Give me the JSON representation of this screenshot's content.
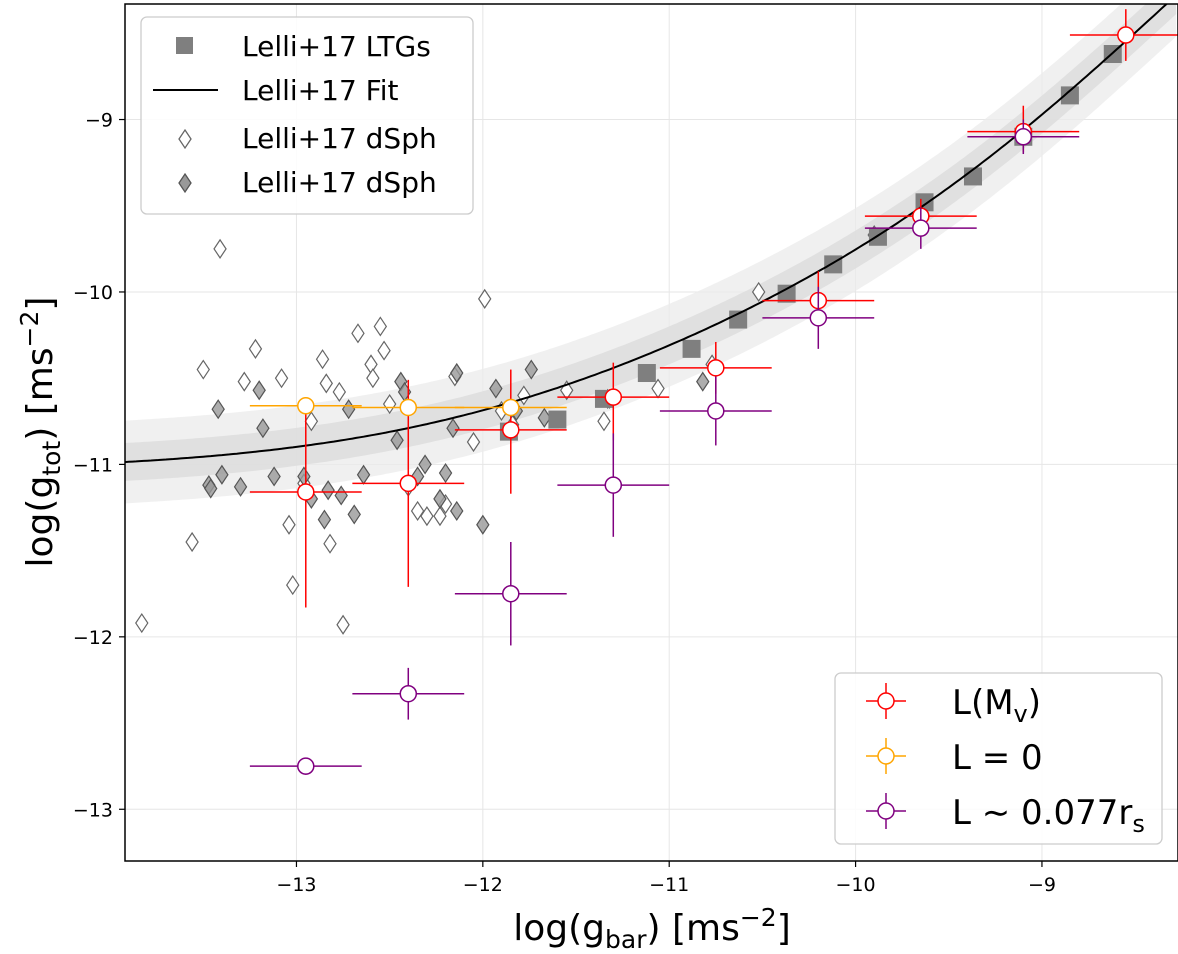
{
  "chart_data": {
    "type": "scatter",
    "xlabel": {
      "main": "log(g",
      "sub": "bar",
      "units": ") [ms",
      "sup": "−2",
      "close": "]"
    },
    "ylabel": {
      "main": "log(g",
      "sub": "tot",
      "units": ") [ms",
      "sup": "−2",
      "close": "]"
    },
    "xlim": [
      -13.92,
      -8.27
    ],
    "ylim": [
      -13.3,
      -8.33
    ],
    "x_ticks": [
      -13,
      -12,
      -11,
      -10,
      -9
    ],
    "y_ticks": [
      -13,
      -12,
      -11,
      -10,
      -9
    ],
    "x_tick_labels": [
      "−13",
      "−12",
      "−11",
      "−10",
      "−9"
    ],
    "y_tick_labels": [
      "−13",
      "−12",
      "−11",
      "−10",
      "−9"
    ],
    "grid": true,
    "legend_top_left": {
      "placement": "top-left",
      "entries": [
        {
          "label": "Lelli+17 LTGs",
          "marker": "square",
          "color": "#7f7f7f"
        },
        {
          "label": "Lelli+17 Fit",
          "marker": "line",
          "color": "#000000"
        },
        {
          "label": "Lelli+17 dSph",
          "marker": "diamond-open",
          "color": "#666666"
        },
        {
          "label": "Lelli+17 dSph",
          "marker": "diamond-filled",
          "color": "#888888"
        }
      ]
    },
    "legend_bottom_right": {
      "placement": "bottom-right",
      "entries": [
        {
          "main": "L(M",
          "sub": "v",
          "tail": ")",
          "color": "#ff0000"
        },
        {
          "main": "L = 0",
          "sub": "",
          "tail": "",
          "color": "#ffa500"
        },
        {
          "main": "L ∼ 0.077r",
          "sub": "s",
          "tail": "",
          "color": "#800080"
        }
      ]
    },
    "fit_curve": {
      "name": "Lelli+17 Fit",
      "color": "#000000",
      "g_dagger": -9.92,
      "a0": -11.04,
      "band_inner": 0.11,
      "band_outer": 0.24
    },
    "ltgs": {
      "name": "Lelli+17 LTGs",
      "color": "#7f7f7f",
      "points": [
        [
          -8.62,
          -8.62
        ],
        [
          -8.85,
          -8.86
        ],
        [
          -9.1,
          -9.1
        ],
        [
          -9.37,
          -9.33
        ],
        [
          -9.63,
          -9.48
        ],
        [
          -9.88,
          -9.68
        ],
        [
          -10.12,
          -9.84
        ],
        [
          -10.37,
          -10.01
        ],
        [
          -10.63,
          -10.16
        ],
        [
          -10.88,
          -10.33
        ],
        [
          -11.12,
          -10.47
        ],
        [
          -11.35,
          -10.62
        ],
        [
          -11.6,
          -10.74
        ],
        [
          -11.86,
          -10.81
        ]
      ]
    },
    "dsph_open": {
      "name": "Lelli+17 dSph",
      "color": "#666666",
      "points": [
        [
          -13.83,
          -11.92
        ],
        [
          -13.56,
          -11.45
        ],
        [
          -13.5,
          -10.45
        ],
        [
          -13.41,
          -9.75
        ],
        [
          -13.28,
          -10.52
        ],
        [
          -13.22,
          -10.33
        ],
        [
          -13.08,
          -10.5
        ],
        [
          -13.04,
          -11.35
        ],
        [
          -13.02,
          -11.7
        ],
        [
          -12.96,
          -11.11
        ],
        [
          -12.92,
          -10.75
        ],
        [
          -12.86,
          -10.39
        ],
        [
          -12.84,
          -10.53
        ],
        [
          -12.82,
          -11.46
        ],
        [
          -12.77,
          -10.58
        ],
        [
          -12.75,
          -11.93
        ],
        [
          -12.67,
          -10.24
        ],
        [
          -12.6,
          -10.42
        ],
        [
          -12.59,
          -10.5
        ],
        [
          -12.55,
          -10.2
        ],
        [
          -12.53,
          -10.34
        ],
        [
          -12.5,
          -10.65
        ],
        [
          -12.4,
          -11.13
        ],
        [
          -12.35,
          -11.27
        ],
        [
          -12.3,
          -11.3
        ],
        [
          -12.23,
          -11.3
        ],
        [
          -12.2,
          -11.23
        ],
        [
          -12.15,
          -10.49
        ],
        [
          -12.05,
          -10.87
        ],
        [
          -11.99,
          -10.04
        ],
        [
          -11.9,
          -10.69
        ],
        [
          -11.84,
          -10.77
        ],
        [
          -11.78,
          -10.6
        ],
        [
          -11.55,
          -10.57
        ],
        [
          -11.35,
          -10.75
        ],
        [
          -11.32,
          -10.62
        ],
        [
          -11.06,
          -10.56
        ],
        [
          -10.77,
          -10.42
        ],
        [
          -10.52,
          -10.0
        ],
        [
          -9.9,
          -9.67
        ]
      ]
    },
    "dsph_filled": {
      "name": "Lelli+17 dSph",
      "color": "#888888",
      "points": [
        [
          -13.47,
          -11.12
        ],
        [
          -13.46,
          -11.14
        ],
        [
          -13.42,
          -10.68
        ],
        [
          -13.4,
          -11.06
        ],
        [
          -13.3,
          -11.13
        ],
        [
          -13.2,
          -10.57
        ],
        [
          -13.18,
          -10.79
        ],
        [
          -13.12,
          -11.07
        ],
        [
          -12.96,
          -11.07
        ],
        [
          -12.92,
          -11.2
        ],
        [
          -12.85,
          -11.32
        ],
        [
          -12.83,
          -11.15
        ],
        [
          -12.76,
          -11.18
        ],
        [
          -12.72,
          -10.68
        ],
        [
          -12.69,
          -11.29
        ],
        [
          -12.64,
          -11.06
        ],
        [
          -12.46,
          -10.86
        ],
        [
          -12.44,
          -10.52
        ],
        [
          -12.42,
          -10.58
        ],
        [
          -12.35,
          -11.07
        ],
        [
          -12.31,
          -11.0
        ],
        [
          -12.23,
          -11.2
        ],
        [
          -12.2,
          -11.05
        ],
        [
          -12.16,
          -10.79
        ],
        [
          -12.14,
          -10.47
        ],
        [
          -12.14,
          -11.27
        ],
        [
          -12.0,
          -11.35
        ],
        [
          -11.93,
          -10.56
        ],
        [
          -11.82,
          -10.69
        ],
        [
          -11.74,
          -10.45
        ],
        [
          -11.67,
          -10.73
        ],
        [
          -11.33,
          -10.62
        ],
        [
          -10.82,
          -10.52
        ]
      ]
    },
    "series": [
      {
        "name": "L(Mv)",
        "color": "#ff0000",
        "points": [
          {
            "x": -12.95,
            "y": -11.16,
            "xl": 0.3,
            "xr": 0.3,
            "yd": 0.67,
            "yu": 0.5
          },
          {
            "x": -12.4,
            "y": -11.11,
            "xl": 0.3,
            "xr": 0.3,
            "yd": 0.6,
            "yu": 0.6
          },
          {
            "x": -11.85,
            "y": -10.8,
            "xl": 0.3,
            "xr": 0.3,
            "yd": 0.37,
            "yu": 0.35
          },
          {
            "x": -11.3,
            "y": -10.61,
            "xl": 0.3,
            "xr": 0.3,
            "yd": 0.25,
            "yu": 0.2
          },
          {
            "x": -10.75,
            "y": -10.44,
            "xl": 0.3,
            "xr": 0.3,
            "yd": 0.15,
            "yu": 0.15
          },
          {
            "x": -10.2,
            "y": -10.05,
            "xl": 0.3,
            "xr": 0.3,
            "yd": 0.12,
            "yu": 0.17
          },
          {
            "x": -9.65,
            "y": -9.56,
            "xl": 0.3,
            "xr": 0.3,
            "yd": 0.1,
            "yu": 0.1
          },
          {
            "x": -9.1,
            "y": -9.07,
            "xl": 0.3,
            "xr": 0.3,
            "yd": 0.12,
            "yu": 0.15
          },
          {
            "x": -8.55,
            "y": -8.51,
            "xl": 0.3,
            "xr": 0.3,
            "yd": 0.15,
            "yu": 0.15
          }
        ]
      },
      {
        "name": "L = 0",
        "color": "#ffa500",
        "points": [
          {
            "x": -12.95,
            "y": -10.66,
            "xl": 0.3,
            "xr": 0.3,
            "yd": 0.0,
            "yu": 0.0
          },
          {
            "x": -12.4,
            "y": -10.67,
            "xl": 0.3,
            "xr": 0.3,
            "yd": 0.0,
            "yu": 0.0
          },
          {
            "x": -11.85,
            "y": -10.67,
            "xl": 0.3,
            "xr": 0.3,
            "yd": 0.0,
            "yu": 0.0
          }
        ]
      },
      {
        "name": "L ~ 0.077rs",
        "color": "#800080",
        "points": [
          {
            "x": -12.95,
            "y": -12.75,
            "xl": 0.3,
            "xr": 0.3,
            "yd": 0.05,
            "yu": 0.05
          },
          {
            "x": -12.4,
            "y": -12.33,
            "xl": 0.3,
            "xr": 0.3,
            "yd": 0.15,
            "yu": 0.15
          },
          {
            "x": -11.85,
            "y": -11.75,
            "xl": 0.3,
            "xr": 0.3,
            "yd": 0.3,
            "yu": 0.3
          },
          {
            "x": -11.3,
            "y": -11.12,
            "xl": 0.3,
            "xr": 0.3,
            "yd": 0.3,
            "yu": 0.3
          },
          {
            "x": -10.75,
            "y": -10.69,
            "xl": 0.3,
            "xr": 0.3,
            "yd": 0.2,
            "yu": 0.2
          },
          {
            "x": -10.2,
            "y": -10.15,
            "xl": 0.3,
            "xr": 0.3,
            "yd": 0.18,
            "yu": 0.18
          },
          {
            "x": -9.65,
            "y": -9.63,
            "xl": 0.3,
            "xr": 0.3,
            "yd": 0.12,
            "yu": 0.12
          },
          {
            "x": -9.1,
            "y": -9.1,
            "xl": 0.3,
            "xr": 0.3,
            "yd": 0.1,
            "yu": 0.1
          }
        ]
      }
    ]
  }
}
